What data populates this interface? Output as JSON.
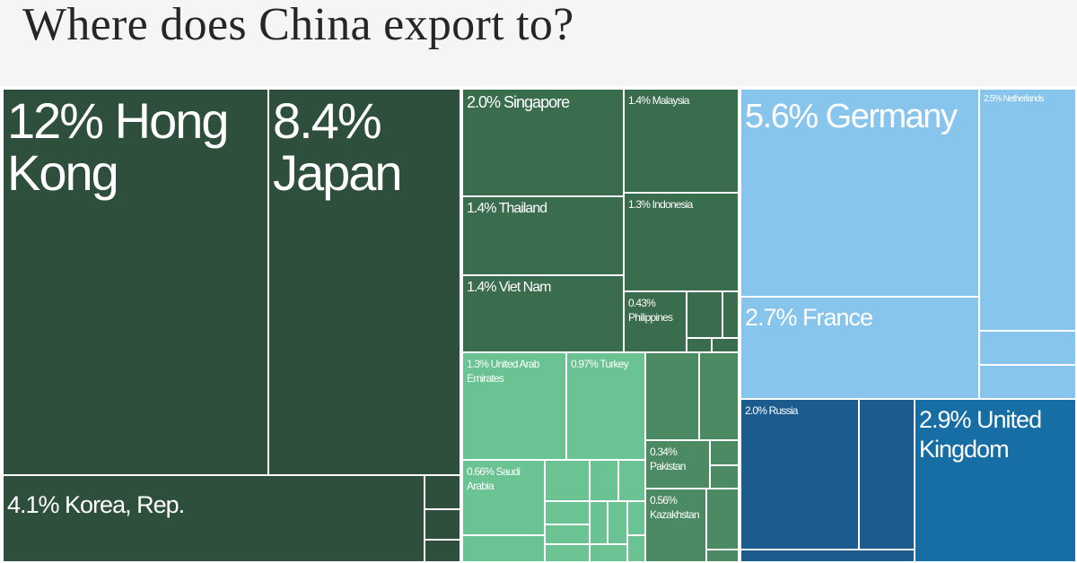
{
  "title": "Where does China export to?",
  "colors": {
    "east_asia": "#2d4f3b",
    "se_asia": "#3a6c4e",
    "se_asia_mid": "#4b8a62",
    "middle_east_central": "#6bc292",
    "europe_west": "#88c5ec",
    "europe_east": "#1b5b8d",
    "uk": "#176ea4"
  },
  "chart_data": {
    "type": "treemap",
    "title": "Where does China export to?",
    "units": "% of exports",
    "items": [
      {
        "name": "Hong Kong",
        "value": 12,
        "label": "12% Hong Kong",
        "group": "east_asia"
      },
      {
        "name": "Japan",
        "value": 8.4,
        "label": "8.4% Japan",
        "group": "east_asia"
      },
      {
        "name": "Korea, Rep.",
        "value": 4.1,
        "label": "4.1% Korea, Rep.",
        "group": "east_asia"
      },
      {
        "name": "Singapore",
        "value": 2.0,
        "label": "2.0% Singapore",
        "group": "se_asia"
      },
      {
        "name": "Malaysia",
        "value": 1.4,
        "label": "1.4% Malaysia",
        "group": "se_asia"
      },
      {
        "name": "Thailand",
        "value": 1.4,
        "label": "1.4% Thailand",
        "group": "se_asia"
      },
      {
        "name": "Indonesia",
        "value": 1.3,
        "label": "1.3% Indonesia",
        "group": "se_asia"
      },
      {
        "name": "Viet Nam",
        "value": 1.4,
        "label": "1.4% Viet Nam",
        "group": "se_asia"
      },
      {
        "name": "Philippines",
        "value": 0.43,
        "label": "0.43% Philippines",
        "group": "se_asia"
      },
      {
        "name": "United Arab Emirates",
        "value": 1.3,
        "label": "1.3% United Arab Emirates",
        "group": "middle_east_central"
      },
      {
        "name": "Turkey",
        "value": 0.97,
        "label": "0.97% Turkey",
        "group": "middle_east_central"
      },
      {
        "name": "Saudi Arabia",
        "value": 0.66,
        "label": "0.66% Saudi Arabia",
        "group": "middle_east_central"
      },
      {
        "name": "Pakistan",
        "value": 0.34,
        "label": "0.34% Pakistan",
        "group": "se_asia_mid"
      },
      {
        "name": "Kazakhstan",
        "value": 0.56,
        "label": "0.56% Kazakhstan",
        "group": "se_asia_mid"
      },
      {
        "name": "Germany",
        "value": 5.6,
        "label": "5.6% Germany",
        "group": "europe_west"
      },
      {
        "name": "Netherlands",
        "value": 2.5,
        "label": "2.5% Netherlands",
        "group": "europe_west"
      },
      {
        "name": "France",
        "value": 2.7,
        "label": "2.7% France",
        "group": "europe_west"
      },
      {
        "name": "Russia",
        "value": 2.0,
        "label": "2.0% Russia",
        "group": "europe_east"
      },
      {
        "name": "United Kingdom",
        "value": 2.9,
        "label": "2.9% United Kingdom",
        "group": "uk"
      }
    ]
  }
}
